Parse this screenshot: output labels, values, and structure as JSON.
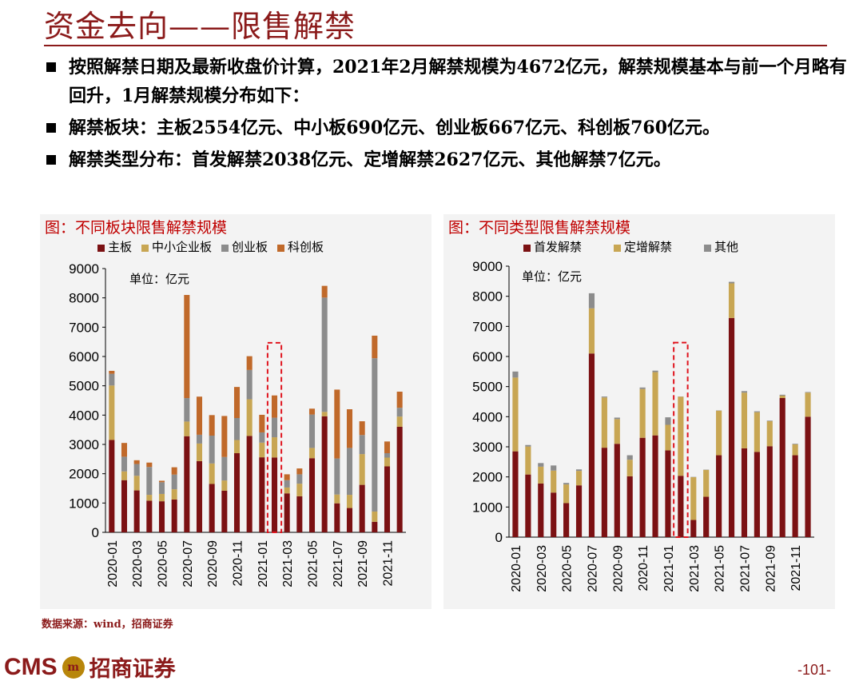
{
  "page": {
    "title": "资金去向——限售解禁",
    "bullets": [
      "按照解禁日期及最新收盘价计算，2021年2月解禁规模为4672亿元，解禁规模基本与前一个月略有回升，1月解禁规模分布如下：",
      "解禁板块：主板2554亿元、中小板690亿元、创业板667亿元、科创板760亿元。",
      "解禁类型分布：首发解禁2038亿元、定增解禁2627亿元、其他解禁7亿元。"
    ],
    "source": "数据来源：wind，招商证券",
    "logo_text": "CMS",
    "logo_badge": "m",
    "logo_cn": "招商证券",
    "page_number": "-101-"
  },
  "colors": {
    "dark_red": "#7B1113",
    "gold": "#C8A653",
    "gray": "#8C8C8C",
    "orange": "#C0692A",
    "highlight": "#E0141E"
  },
  "chart_data": [
    {
      "type": "bar",
      "stacked": true,
      "title": "图：不同板块限售解禁规模",
      "unit_label": "单位：亿元",
      "categories": [
        "2020-01",
        "2020-02",
        "2020-03",
        "2020-04",
        "2020-05",
        "2020-06",
        "2020-07",
        "2020-08",
        "2020-09",
        "2020-10",
        "2020-11",
        "2020-12",
        "2021-01",
        "2021-02",
        "2021-03",
        "2021-04",
        "2021-05",
        "2021-06",
        "2021-07",
        "2021-08",
        "2021-09",
        "2021-10",
        "2021-11",
        "2021-12"
      ],
      "x_tick_labels": [
        "2020-01",
        "2020-03",
        "2020-05",
        "2020-07",
        "2020-09",
        "2020-11",
        "2021-01",
        "2021-03",
        "2021-05",
        "2021-07",
        "2021-09",
        "2021-11"
      ],
      "ylim": [
        0,
        9000
      ],
      "yticks": [
        0,
        1000,
        2000,
        3000,
        4000,
        5000,
        6000,
        7000,
        8000,
        9000
      ],
      "highlight_category": "2021-02",
      "series": [
        {
          "name": "主板",
          "color_key": "dark_red",
          "values": [
            3150,
            1780,
            1430,
            1080,
            1060,
            1120,
            3280,
            2430,
            1650,
            1420,
            2700,
            3290,
            2560,
            2554,
            1330,
            1230,
            2530,
            3960,
            990,
            830,
            1620,
            360,
            2250,
            3600
          ]
        },
        {
          "name": "中小企业板",
          "color_key": "gold",
          "values": [
            1860,
            300,
            500,
            200,
            250,
            350,
            500,
            600,
            700,
            350,
            450,
            1250,
            500,
            690,
            200,
            430,
            350,
            150,
            300,
            450,
            1050,
            350,
            300,
            350
          ]
        },
        {
          "name": "创业板",
          "color_key": "gray",
          "values": [
            400,
            500,
            400,
            950,
            400,
            500,
            800,
            300,
            950,
            800,
            750,
            1000,
            350,
            667,
            250,
            320,
            1140,
            3900,
            1230,
            1600,
            650,
            5230,
            150,
            300
          ]
        },
        {
          "name": "科创板",
          "color_key": "orange",
          "values": [
            100,
            470,
            130,
            150,
            50,
            250,
            3520,
            1300,
            700,
            1400,
            1060,
            470,
            600,
            760,
            200,
            200,
            200,
            400,
            2350,
            1320,
            470,
            770,
            400,
            550
          ]
        }
      ]
    },
    {
      "type": "bar",
      "stacked": true,
      "title": "图：不同类型限售解禁规模",
      "unit_label": "单位：亿元",
      "categories": [
        "2020-01",
        "2020-02",
        "2020-03",
        "2020-04",
        "2020-05",
        "2020-06",
        "2020-07",
        "2020-08",
        "2020-09",
        "2020-10",
        "2020-11",
        "2020-12",
        "2021-01",
        "2021-02",
        "2021-03",
        "2021-04",
        "2021-05",
        "2021-06",
        "2021-07",
        "2021-08",
        "2021-09",
        "2021-10",
        "2021-11",
        "2021-12"
      ],
      "x_tick_labels": [
        "2020-01",
        "2020-03",
        "2020-05",
        "2020-07",
        "2020-09",
        "2020-11",
        "2021-01",
        "2021-03",
        "2021-05",
        "2021-07",
        "2021-09",
        "2021-11"
      ],
      "ylim": [
        0,
        9000
      ],
      "yticks": [
        0,
        1000,
        2000,
        3000,
        4000,
        5000,
        6000,
        7000,
        8000,
        9000
      ],
      "highlight_category": "2021-02",
      "series": [
        {
          "name": "首发解禁",
          "color_key": "dark_red",
          "values": [
            2850,
            2080,
            1780,
            1480,
            1130,
            1720,
            6100,
            2970,
            3100,
            2020,
            3300,
            3380,
            2880,
            2038,
            570,
            1340,
            2720,
            7280,
            2950,
            2830,
            3020,
            4620,
            2720,
            4000
          ]
        },
        {
          "name": "定增解禁",
          "color_key": "gold",
          "values": [
            2450,
            930,
            560,
            730,
            620,
            480,
            1500,
            1670,
            820,
            550,
            1620,
            2100,
            850,
            2627,
            1420,
            890,
            1480,
            1150,
            1850,
            1320,
            830,
            80,
            360,
            800
          ]
        },
        {
          "name": "其他",
          "color_key": "gray",
          "values": [
            200,
            50,
            120,
            170,
            50,
            50,
            500,
            30,
            50,
            150,
            50,
            50,
            250,
            7,
            10,
            10,
            10,
            50,
            50,
            30,
            20,
            30,
            20,
            20
          ]
        }
      ]
    }
  ]
}
